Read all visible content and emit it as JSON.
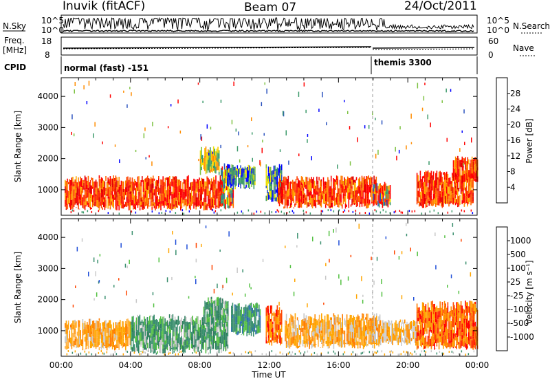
{
  "header": {
    "station": "Inuvik (fitACF)",
    "beam": "Beam 07",
    "date": "24/Oct/2011"
  },
  "summary_panel": {
    "nsky_label": "N.Sky",
    "nsearch_label": "N.Search",
    "freq_label": "Freq.",
    "freq_unit": "[MHz]",
    "nave_label": "Nave",
    "cpid_label": "CPID",
    "nsky_ticks": [
      "10^5",
      "10^0"
    ],
    "nsearch_ticks": [
      "10^5",
      "10^0"
    ],
    "freq_ticks": [
      "18",
      "8"
    ],
    "nave_ticks": [
      "60",
      "0"
    ],
    "cpid_modes": [
      {
        "label": "normal (fast) -151",
        "start": "00:00"
      },
      {
        "label": "themis 3300",
        "start": "18:00"
      }
    ]
  },
  "colorbars": {
    "power": {
      "title": "Power [dB]",
      "ticks": [
        "28",
        "24",
        "20",
        "16",
        "12",
        "8",
        "4"
      ],
      "colors": [
        "#0000ff",
        "#2a52be",
        "#3c9a6a",
        "#7dc242",
        "#f0e000",
        "#ff8c00",
        "#ff5500",
        "#ff0000"
      ]
    },
    "velocity": {
      "title": "Velocity [m s⁻¹]",
      "ticks": [
        "1000",
        "500",
        "100",
        "25",
        "-25",
        "-100",
        "-500",
        "-1000"
      ],
      "colors": [
        "#1f4ed8",
        "#2f6fb0",
        "#3a8f6e",
        "#52c040",
        "#c8c8c8",
        "#ffa500",
        "#ff7a00",
        "#ff4500",
        "#ff0000"
      ]
    }
  },
  "chart_data": [
    {
      "type": "heatmap",
      "title": "Power [dB]",
      "xlabel": "",
      "ylabel": "Slant Range [km]",
      "x_ticks": [
        "00:00",
        "04:00",
        "08:00",
        "12:00",
        "16:00",
        "20:00",
        "00:00"
      ],
      "y_ticks": [
        "1000",
        "2000",
        "3000",
        "4000"
      ],
      "ylim": [
        180,
        4600
      ],
      "xlim_hours": [
        0,
        24
      ],
      "mode_change_hour": 18,
      "regions": [
        {
          "x": [
            0.2,
            9.2
          ],
          "y": [
            420,
            1350
          ],
          "value": "high"
        },
        {
          "x": [
            9.2,
            9.9
          ],
          "y": [
            420,
            1750
          ],
          "value": "mixed"
        },
        {
          "x": [
            8.0,
            9.1
          ],
          "y": [
            1550,
            2300
          ],
          "value": "mid"
        },
        {
          "x": [
            9.5,
            11.2
          ],
          "y": [
            1100,
            1750
          ],
          "value": "low"
        },
        {
          "x": [
            11.8,
            12.7
          ],
          "y": [
            650,
            1700
          ],
          "value": "low"
        },
        {
          "x": [
            12.5,
            18.2
          ],
          "y": [
            480,
            1350
          ],
          "value": "high"
        },
        {
          "x": [
            18.0,
            19.0
          ],
          "y": [
            500,
            1200
          ],
          "value": "mixed"
        },
        {
          "x": [
            20.5,
            23.8
          ],
          "y": [
            500,
            1500
          ],
          "value": "high"
        },
        {
          "x": [
            22.6,
            24.0
          ],
          "y": [
            1300,
            2000
          ],
          "value": "high"
        }
      ]
    },
    {
      "type": "heatmap",
      "title": "Velocity [m s⁻¹]",
      "xlabel": "Time UT",
      "ylabel": "Slant Range [km]",
      "x_ticks": [
        "00:00",
        "04:00",
        "08:00",
        "12:00",
        "16:00",
        "20:00",
        "00:00"
      ],
      "y_ticks": [
        "1000",
        "2000",
        "3000",
        "4000"
      ],
      "ylim": [
        180,
        4600
      ],
      "xlim_hours": [
        0,
        24
      ],
      "mode_change_hour": 18,
      "regions": [
        {
          "x": [
            0.2,
            4.0
          ],
          "y": [
            450,
            1300
          ],
          "value": "away-small"
        },
        {
          "x": [
            4.0,
            9.6
          ],
          "y": [
            350,
            1400
          ],
          "value": "toward-mid"
        },
        {
          "x": [
            8.2,
            9.6
          ],
          "y": [
            1250,
            2000
          ],
          "value": "toward-mid"
        },
        {
          "x": [
            9.8,
            11.5
          ],
          "y": [
            900,
            1800
          ],
          "value": "toward-high"
        },
        {
          "x": [
            11.8,
            12.7
          ],
          "y": [
            600,
            1700
          ],
          "value": "away-mid"
        },
        {
          "x": [
            12.9,
            18.4
          ],
          "y": [
            500,
            1450
          ],
          "value": "away-small"
        },
        {
          "x": [
            18.4,
            20.5
          ],
          "y": [
            600,
            1300
          ],
          "value": "near-zero"
        },
        {
          "x": [
            20.5,
            24.0
          ],
          "y": [
            450,
            1800
          ],
          "value": "away-mid"
        }
      ]
    }
  ]
}
